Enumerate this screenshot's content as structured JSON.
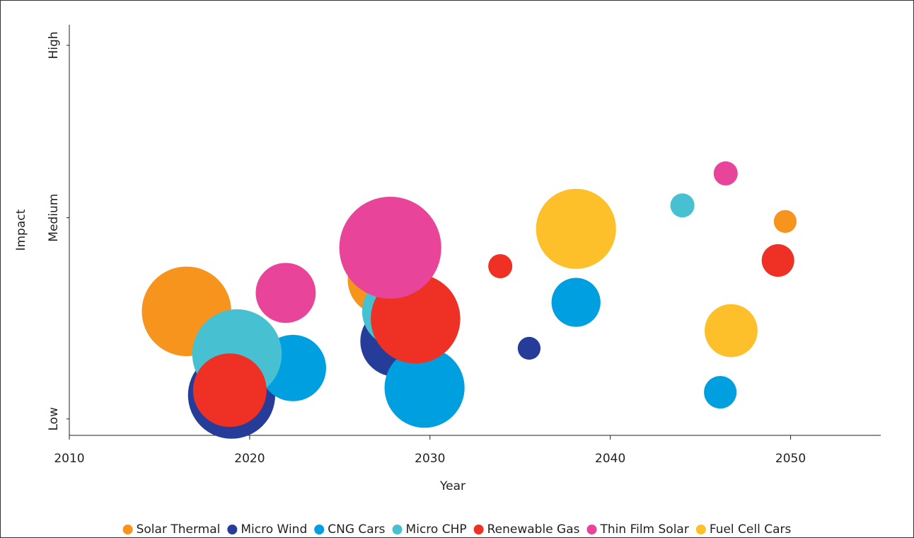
{
  "chart_data": {
    "type": "bubble",
    "x_label": "Year",
    "y_label": "Impact",
    "xlim": [
      2010,
      2055
    ],
    "xticks": [
      2010,
      2020,
      2030,
      2040,
      2050
    ],
    "ylim": [
      0,
      100
    ],
    "yticks": [
      {
        "value": 4,
        "label": "Low"
      },
      {
        "value": 53,
        "label": "Medium"
      },
      {
        "value": 95,
        "label": "High"
      }
    ],
    "series": [
      {
        "name": "Solar Thermal",
        "color": "#f7941d",
        "x": [
          2016.5,
          2027.4,
          2049.7
        ],
        "y": [
          30.2,
          37.9,
          52.1
        ],
        "size": [
          40,
          25,
          2.6
        ]
      },
      {
        "name": "Micro Wind",
        "color": "#253d98",
        "x": [
          2019.0,
          2028.1,
          2035.5
        ],
        "y": [
          9.8,
          22.9,
          21.2
        ],
        "size": [
          38,
          25,
          2.6
        ]
      },
      {
        "name": "CNG Cars",
        "color": "#009fdf",
        "x": [
          2022.4,
          2029.7,
          2038.1,
          2046.1
        ],
        "y": [
          16.4,
          11.6,
          32.4,
          10.5
        ],
        "size": [
          22,
          32,
          12,
          5.3
        ]
      },
      {
        "name": "Micro CHP",
        "color": "#47c1d1",
        "x": [
          2019.3,
          2028.2,
          2044.0
        ],
        "y": [
          19.8,
          30.2,
          56.0
        ],
        "size": [
          40,
          25,
          2.9
        ]
      },
      {
        "name": "Renewable Gas",
        "color": "#ee3124",
        "x": [
          2018.9,
          2029.2,
          2033.9,
          2049.3
        ],
        "y": [
          11.0,
          28.4,
          41.2,
          42.6
        ],
        "size": [
          27,
          40,
          2.9,
          5.3
        ]
      },
      {
        "name": "Thin Film Solar",
        "color": "#e8449a",
        "x": [
          2022.0,
          2027.8,
          2046.4
        ],
        "y": [
          34.7,
          45.7,
          63.8
        ],
        "size": [
          18,
          52,
          2.9
        ]
      },
      {
        "name": "Fuel Cell Cars",
        "color": "#fdc02b",
        "x": [
          2038.1,
          2046.7
        ],
        "y": [
          50.3,
          25.5
        ],
        "size": [
          32,
          14
        ]
      }
    ]
  }
}
